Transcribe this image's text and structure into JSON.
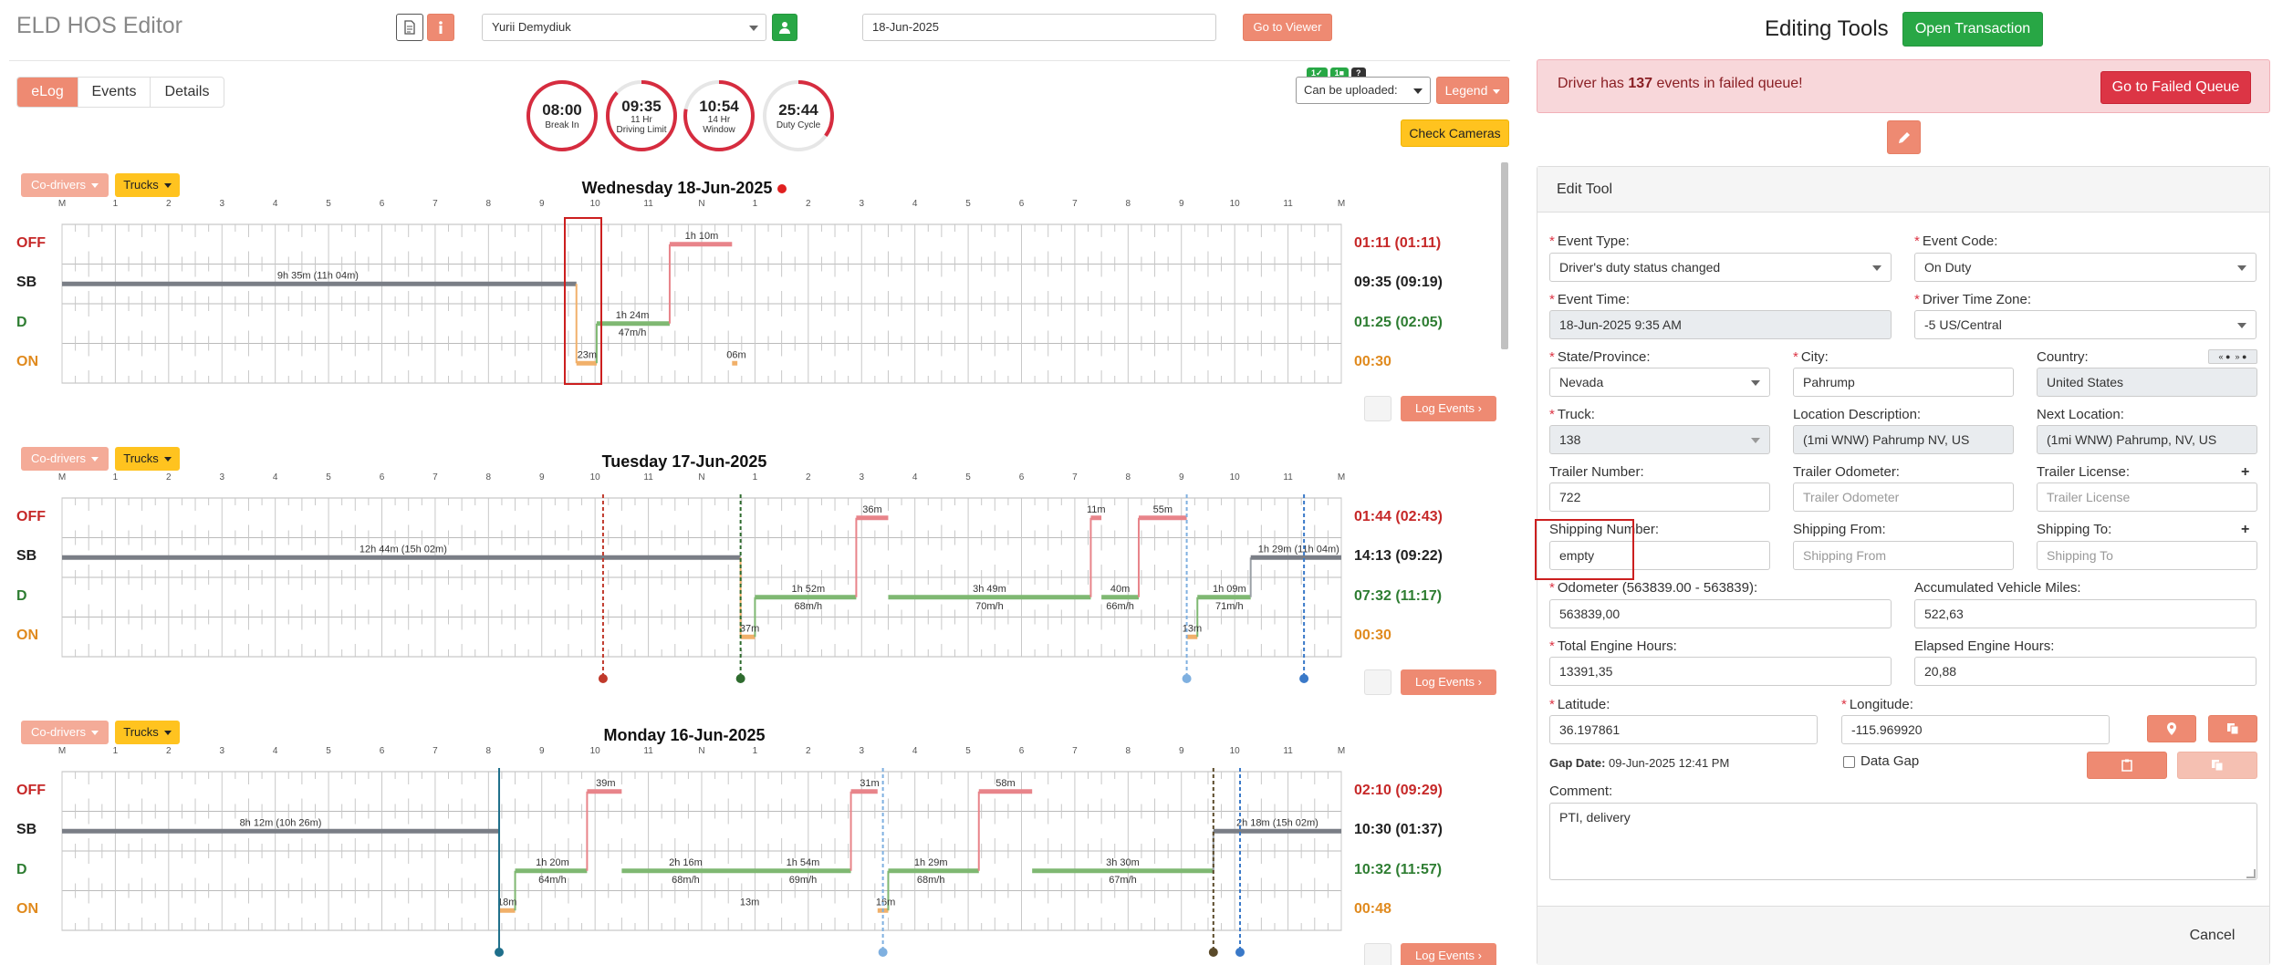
{
  "header": {
    "title": "ELD HOS Editor",
    "driver": "Yurii Demydiuk",
    "date": "18-Jun-2025",
    "go_viewer": "Go to Viewer"
  },
  "tabs": [
    "eLog",
    "Events",
    "Details"
  ],
  "gauges": [
    {
      "time": "08:00",
      "line1": "Break In",
      "line2": "",
      "fraction": 1.0
    },
    {
      "time": "09:35",
      "line1": "11 Hr",
      "line2": "Driving Limit",
      "fraction": 0.87
    },
    {
      "time": "10:54",
      "line1": "14 Hr",
      "line2": "Window",
      "fraction": 0.78
    },
    {
      "time": "25:44",
      "line1": "Duty Cycle",
      "line2": "",
      "fraction": 0.35
    }
  ],
  "status_badges": [
    "1",
    "1",
    "?"
  ],
  "upload_select": "Can be uploaded:",
  "legend_btn": "Legend",
  "check_cameras": "Check Cameras",
  "codrivers_btn": "Co-drivers",
  "trucks_btn": "Trucks",
  "log_events_btn": "Log Events",
  "rows": [
    "OFF",
    "SB",
    "D",
    "ON"
  ],
  "hour_labels": [
    "M",
    "1",
    "2",
    "3",
    "4",
    "5",
    "6",
    "7",
    "8",
    "9",
    "10",
    "11",
    "N",
    "1",
    "2",
    "3",
    "4",
    "5",
    "6",
    "7",
    "8",
    "9",
    "10",
    "11",
    "M"
  ],
  "days": [
    {
      "title": "Wednesday 18-Jun-2025",
      "totals": [
        "01:11 (01:11)",
        "09:35 (09:19)",
        "01:25 (02:05)",
        "00:30"
      ],
      "segments": [
        [
          1,
          0,
          9.65
        ],
        [
          3,
          9.65,
          10.03
        ],
        [
          2,
          10.03,
          11.4
        ],
        [
          0,
          11.4,
          12.57
        ],
        [
          3,
          12.57,
          12.67
        ]
      ],
      "labels": [
        {
          "text": "9h 35m (11h 04m)",
          "x": 4.8,
          "row": 1
        },
        {
          "text": "23m",
          "x": 9.85,
          "row": 3
        },
        {
          "text": "1h 24m",
          "x": 10.7,
          "row": 2
        },
        {
          "text": "47m/h",
          "x": 10.7,
          "row": 2.5
        },
        {
          "text": "1h 10m",
          "x": 12.0,
          "row": 0
        },
        {
          "text": "06m",
          "x": 12.65,
          "row": 3
        }
      ],
      "markers": []
    },
    {
      "title": "Tuesday 17-Jun-2025",
      "totals": [
        "01:44 (02:43)",
        "14:13 (09:22)",
        "07:32 (11:17)",
        "00:30"
      ],
      "segments": [
        [
          1,
          0,
          12.73
        ],
        [
          3,
          12.73,
          13.0
        ],
        [
          2,
          13.0,
          14.9
        ],
        [
          0,
          14.9,
          15.5
        ],
        [
          2,
          15.5,
          19.3
        ],
        [
          0,
          19.3,
          19.5
        ],
        [
          2,
          19.5,
          20.2
        ],
        [
          0,
          20.2,
          21.1
        ],
        [
          3,
          21.1,
          21.3
        ],
        [
          2,
          21.3,
          22.3
        ],
        [
          1,
          22.3,
          24
        ]
      ],
      "labels": [
        {
          "text": "12h 44m (15h 02m)",
          "x": 6.4,
          "row": 1
        },
        {
          "text": "37m",
          "x": 12.9,
          "row": 3
        },
        {
          "text": "1h 52m",
          "x": 14.0,
          "row": 2
        },
        {
          "text": "68m/h",
          "x": 14.0,
          "row": 2.5
        },
        {
          "text": "36m",
          "x": 15.2,
          "row": 0
        },
        {
          "text": "3h 49m",
          "x": 17.4,
          "row": 2
        },
        {
          "text": "70m/h",
          "x": 17.4,
          "row": 2.5
        },
        {
          "text": "11m",
          "x": 19.4,
          "row": 0
        },
        {
          "text": "40m",
          "x": 19.85,
          "row": 2
        },
        {
          "text": "66m/h",
          "x": 19.85,
          "row": 2.5
        },
        {
          "text": "55m",
          "x": 20.65,
          "row": 0
        },
        {
          "text": "13m",
          "x": 21.2,
          "row": 3
        },
        {
          "text": "1h 09m",
          "x": 21.9,
          "row": 2
        },
        {
          "text": "71m/h",
          "x": 21.9,
          "row": 2.5
        },
        {
          "text": "1h 29m (11h 04m)",
          "x": 23.2,
          "row": 1
        }
      ],
      "markers": [
        {
          "h": 10.15,
          "color": "#c0392b",
          "style": "dash"
        },
        {
          "h": 12.73,
          "color": "#2e6b2e",
          "style": "dash"
        },
        {
          "h": 21.1,
          "color": "#7fb0e0",
          "style": "dash"
        },
        {
          "h": 23.3,
          "color": "#3a79c8",
          "style": "dash"
        }
      ]
    },
    {
      "title": "Monday 16-Jun-2025",
      "totals": [
        "02:10 (09:29)",
        "10:30 (01:37)",
        "10:32 (11:57)",
        "00:48"
      ],
      "segments": [
        [
          1,
          0,
          8.2
        ],
        [
          3,
          8.2,
          8.5
        ],
        [
          2,
          8.5,
          9.85
        ],
        [
          0,
          9.85,
          10.5
        ],
        [
          2,
          10.5,
          14.8
        ],
        [
          0,
          14.8,
          15.3
        ],
        [
          3,
          15.3,
          15.5
        ],
        [
          2,
          15.5,
          17.2
        ],
        [
          0,
          17.2,
          18.2
        ],
        [
          2,
          18.2,
          21.6
        ],
        [
          1,
          21.6,
          24
        ]
      ],
      "labels": [
        {
          "text": "8h 12m (10h 26m)",
          "x": 4.1,
          "row": 1
        },
        {
          "text": "18m",
          "x": 8.35,
          "row": 3
        },
        {
          "text": "1h 20m",
          "x": 9.2,
          "row": 2
        },
        {
          "text": "64m/h",
          "x": 9.2,
          "row": 2.5
        },
        {
          "text": "39m",
          "x": 10.2,
          "row": 0
        },
        {
          "text": "2h 16m",
          "x": 11.7,
          "row": 2
        },
        {
          "text": "68m/h",
          "x": 11.7,
          "row": 2.5
        },
        {
          "text": "13m",
          "x": 12.9,
          "row": 3
        },
        {
          "text": "1h 54m",
          "x": 13.9,
          "row": 2
        },
        {
          "text": "69m/h",
          "x": 13.9,
          "row": 2.5
        },
        {
          "text": "31m",
          "x": 15.15,
          "row": 0
        },
        {
          "text": "16m",
          "x": 15.45,
          "row": 3
        },
        {
          "text": "1h 29m",
          "x": 16.3,
          "row": 2
        },
        {
          "text": "68m/h",
          "x": 16.3,
          "row": 2.5
        },
        {
          "text": "58m",
          "x": 17.7,
          "row": 0
        },
        {
          "text": "3h 30m",
          "x": 19.9,
          "row": 2
        },
        {
          "text": "67m/h",
          "x": 19.9,
          "row": 2.5
        },
        {
          "text": "2h 18m (15h 02m)",
          "x": 22.8,
          "row": 1
        }
      ],
      "markers": [
        {
          "h": 8.2,
          "color": "#1f6f8b",
          "style": "solid"
        },
        {
          "h": 15.4,
          "color": "#7fb0e0",
          "style": "dash"
        },
        {
          "h": 21.6,
          "color": "#5a4a2a",
          "style": "dash"
        },
        {
          "h": 22.1,
          "color": "#3a79c8",
          "style": "dash"
        }
      ]
    }
  ],
  "right": {
    "title": "Editing Tools",
    "open_tx": "Open Transaction",
    "alert_pre": "Driver has ",
    "alert_count": "137",
    "alert_post": " events in failed queue!",
    "failed_btn": "Go to Failed Queue",
    "edit_tool": "Edit Tool",
    "fields": {
      "event_type_label": "Event Type:",
      "event_type": "Driver's duty status changed",
      "event_code_label": "Event Code:",
      "event_code": "On Duty",
      "event_time_label": "Event Time:",
      "event_time": "18-Jun-2025 9:35 AM",
      "tz_label": "Driver Time Zone:",
      "tz": "-5 US/Central",
      "state_label": "State/Province:",
      "state": "Nevada",
      "city_label": "City:",
      "city": "Pahrump",
      "country_label": "Country:",
      "country": "United States",
      "truck_label": "Truck:",
      "truck": "138",
      "locdesc_label": "Location Description:",
      "locdesc": "(1mi WNW) Pahrump NV, US",
      "nextloc_label": "Next Location:",
      "nextloc": "(1mi WNW) Pahrump, NV, US",
      "trailer_label": "Trailer Number:",
      "trailer": "722",
      "trailer_odo_label": "Trailer Odometer:",
      "trailer_odo_ph": "Trailer Odometer",
      "trailer_lic_label": "Trailer License:",
      "trailer_lic_ph": "Trailer License",
      "ship_num_label": "Shipping Number:",
      "ship_num": "empty",
      "ship_from_label": "Shipping From:",
      "ship_from_ph": "Shipping From",
      "ship_to_label": "Shipping To:",
      "ship_to_ph": "Shipping To",
      "odo_label": "Odometer (563839.00 - 563839):",
      "odo": "563839,00",
      "acc_miles_label": "Accumulated Vehicle Miles:",
      "acc_miles": "522,63",
      "eng_hours_label": "Total Engine Hours:",
      "eng_hours": "13391,35",
      "elapsed_label": "Elapsed Engine Hours:",
      "elapsed": "20,88",
      "lat_label": "Latitude:",
      "lat": "36.197861",
      "lon_label": "Longitude:",
      "lon": "-115.969920",
      "gap_label": "Gap Date:",
      "gap": "09-Jun-2025 12:41 PM",
      "data_gap": "Data Gap",
      "comment_label": "Comment:",
      "comment": "PTI, delivery"
    },
    "cancel": "Cancel"
  },
  "colors": {
    "off": "#c62828",
    "sb": "#222",
    "d": "#2e7d32",
    "on": "#e08a1e",
    "accent": "#ee8a72"
  }
}
